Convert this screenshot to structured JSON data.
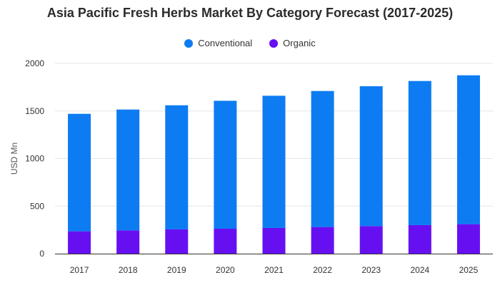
{
  "chart_data": {
    "type": "bar",
    "stacked": true,
    "title": "Asia Pacific Fresh Herbs Market By Category Forecast (2017-2025)",
    "ylabel": "USD Mn",
    "xlabel": "",
    "ylim": [
      0,
      2000
    ],
    "yticks": [
      0,
      500,
      1000,
      1500,
      2000
    ],
    "grid": true,
    "legend_position": "top-center",
    "categories": [
      "2017",
      "2018",
      "2019",
      "2020",
      "2021",
      "2022",
      "2023",
      "2024",
      "2025"
    ],
    "series": [
      {
        "name": "Organic",
        "color": "#6610f2",
        "values": [
          235,
          245,
          255,
          262,
          270,
          280,
          290,
          300,
          310
        ]
      },
      {
        "name": "Conventional",
        "color": "#0d7cf2",
        "values": [
          1235,
          1270,
          1305,
          1345,
          1390,
          1430,
          1470,
          1515,
          1565
        ]
      }
    ]
  }
}
